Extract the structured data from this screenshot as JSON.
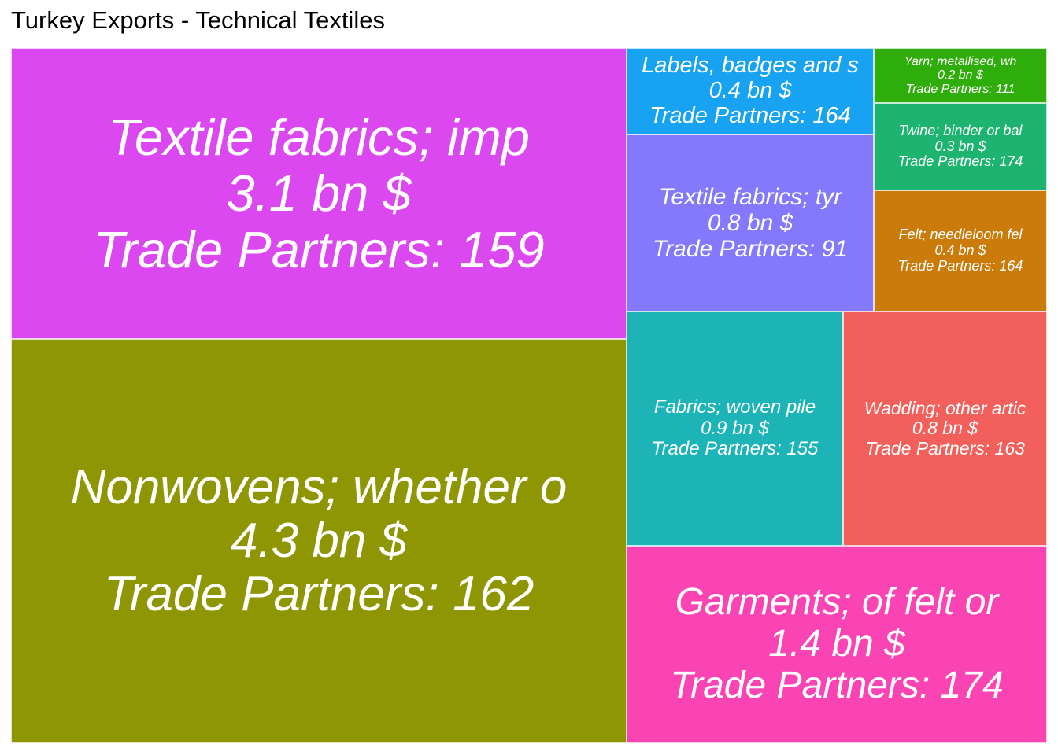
{
  "chart_data": {
    "type": "treemap",
    "title": "Turkey Exports - Technical Textiles",
    "value_unit": "bn $",
    "items": [
      {
        "label": "Nonwovens; whether o",
        "value": 4.3,
        "value_text": "4.3 bn $",
        "partners": 162,
        "partners_text": "Trade Partners: 162",
        "color": "#8f9603"
      },
      {
        "label": "Textile fabrics; imp",
        "value": 3.1,
        "value_text": "3.1 bn $",
        "partners": 159,
        "partners_text": "Trade Partners: 159",
        "color": "#db48f0"
      },
      {
        "label": "Garments; of felt or",
        "value": 1.4,
        "value_text": "1.4 bn $",
        "partners": 174,
        "partners_text": "Trade Partners: 174",
        "color": "#fb44b4"
      },
      {
        "label": "Fabrics; woven pile",
        "value": 0.9,
        "value_text": "0.9 bn $",
        "partners": 155,
        "partners_text": "Trade Partners: 155",
        "color": "#1cb4b7"
      },
      {
        "label": "Wadding; other artic",
        "value": 0.8,
        "value_text": "0.8 bn $",
        "partners": 163,
        "partners_text": "Trade Partners: 163",
        "color": "#f35f5a"
      },
      {
        "label": "Textile fabrics; tyr",
        "value": 0.8,
        "value_text": "0.8 bn $",
        "partners": 91,
        "partners_text": "Trade Partners: 91",
        "color": "#8478fc"
      },
      {
        "label": "Labels, badges and s",
        "value": 0.4,
        "value_text": "0.4 bn $",
        "partners": 164,
        "partners_text": "Trade Partners: 164",
        "color": "#18a2f2"
      },
      {
        "label": "Felt; needleloom fel",
        "value": 0.4,
        "value_text": "0.4 bn $",
        "partners": 164,
        "partners_text": "Trade Partners: 164",
        "color": "#cb7b0a"
      },
      {
        "label": "Twine; binder or bal",
        "value": 0.3,
        "value_text": "0.3 bn $",
        "partners": 174,
        "partners_text": "Trade Partners: 174",
        "color": "#1db46f"
      },
      {
        "label": "Yarn; metallised, wh",
        "value": 0.2,
        "value_text": "0.2 bn $",
        "partners": 111,
        "partners_text": "Trade Partners: 111",
        "color": "#2fad0b"
      }
    ]
  }
}
